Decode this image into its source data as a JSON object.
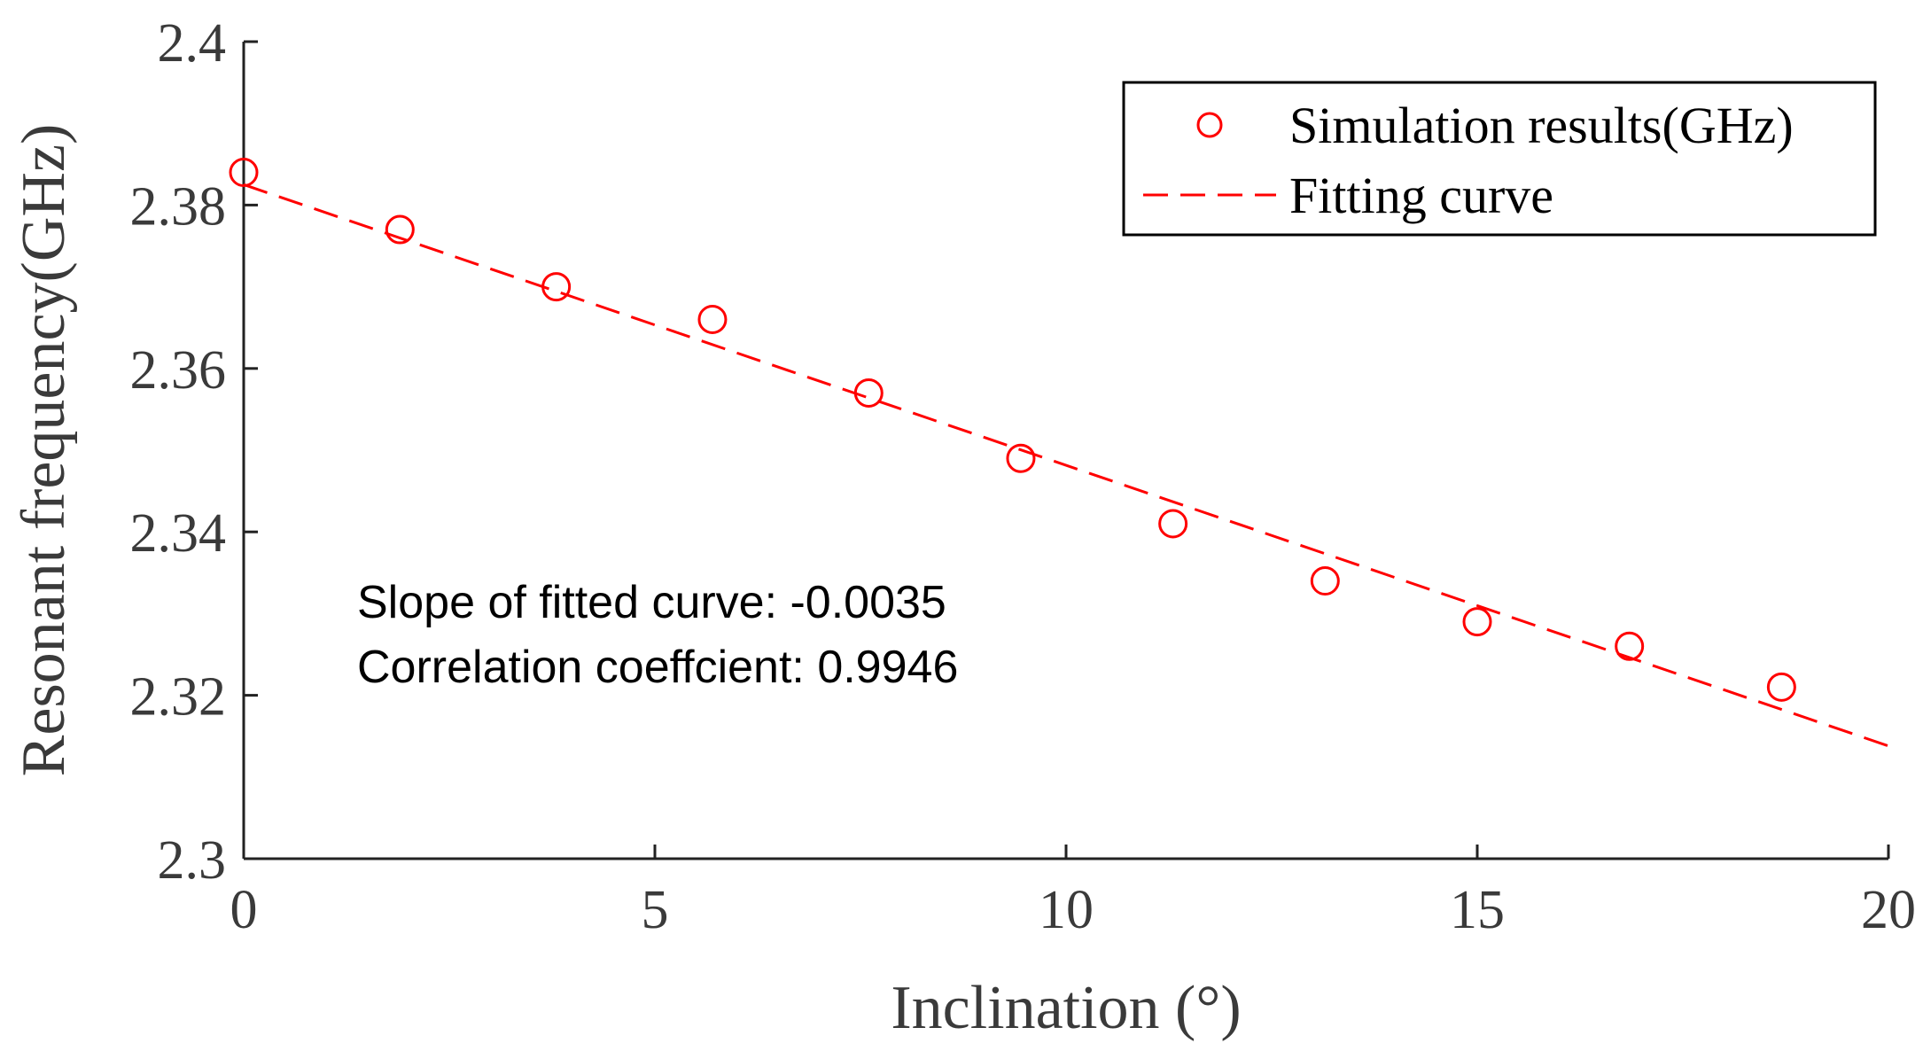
{
  "chart_data": {
    "type": "scatter",
    "xlabel": "Inclination (°)",
    "ylabel": "Resonant frequency(GHz)",
    "xlim": [
      0,
      20
    ],
    "ylim": [
      2.3,
      2.4
    ],
    "x_ticks": [
      "0",
      "5",
      "10",
      "15",
      "20"
    ],
    "x_tick_values": [
      0,
      5,
      10,
      15,
      20
    ],
    "y_ticks": [
      "2.3",
      "2.32",
      "2.34",
      "2.36",
      "2.38",
      "2.4"
    ],
    "y_tick_values": [
      2.3,
      2.32,
      2.34,
      2.36,
      2.38,
      2.4
    ],
    "series": [
      {
        "name": "Simulation results(GHz)",
        "style": "markers",
        "marker": "circle",
        "color": "#ff0000",
        "x": [
          0,
          1.9,
          3.8,
          5.7,
          7.6,
          9.45,
          11.3,
          13.15,
          15.0,
          16.85,
          18.7
        ],
        "y": [
          2.384,
          2.377,
          2.37,
          2.366,
          2.357,
          2.349,
          2.341,
          2.334,
          2.329,
          2.326,
          2.321
        ]
      },
      {
        "name": "Fitting curve",
        "style": "dashed-line",
        "color": "#ff0000",
        "x": [
          0,
          20
        ],
        "y": [
          2.3825,
          2.3138
        ]
      }
    ],
    "annotations": {
      "slope": "Slope of fitted curve: -0.0035",
      "correlation": "Correlation coeffcient: 0.9946"
    },
    "legend_position": "top-right",
    "grid": false
  }
}
